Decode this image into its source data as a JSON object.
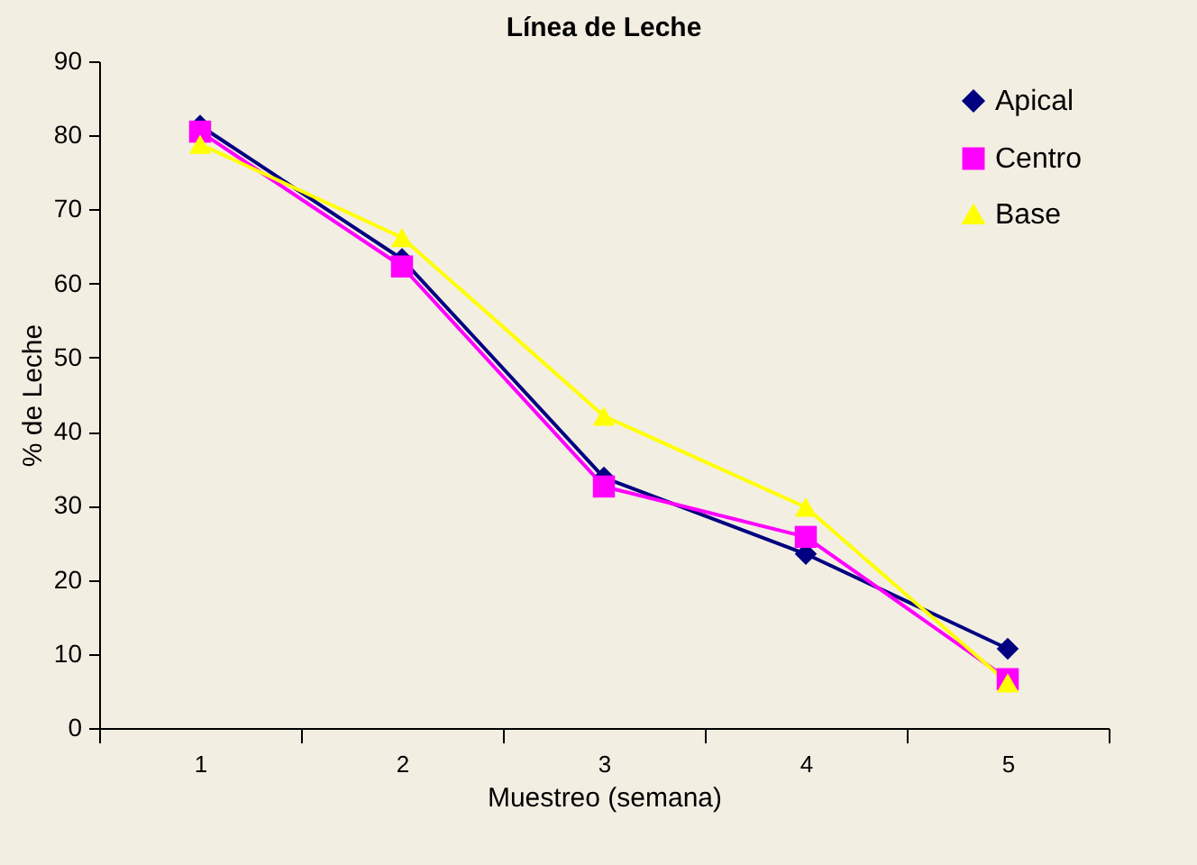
{
  "chart_data": {
    "type": "line",
    "title": "Línea de Leche",
    "xlabel": "Muestreo (semana)",
    "ylabel": "% de Leche",
    "categories": [
      "1",
      "2",
      "3",
      "4",
      "5"
    ],
    "series": [
      {
        "name": "Apical",
        "color": "#000080",
        "marker": "diamond",
        "values": [
          81.3,
          63.3,
          33.8,
          23.5,
          10.7
        ]
      },
      {
        "name": "Centro",
        "color": "#ff00ff",
        "marker": "square",
        "values": [
          80.5,
          62.3,
          32.6,
          25.8,
          6.6
        ]
      },
      {
        "name": "Base",
        "color": "#ffff00",
        "marker": "triangle",
        "values": [
          78.8,
          66.2,
          42.1,
          29.8,
          6.1
        ]
      }
    ],
    "ylim": [
      0,
      90
    ],
    "yticks": [
      0,
      10,
      20,
      30,
      40,
      50,
      60,
      70,
      80,
      90
    ],
    "grid": false,
    "legend": "top right",
    "line_style": "solid"
  }
}
